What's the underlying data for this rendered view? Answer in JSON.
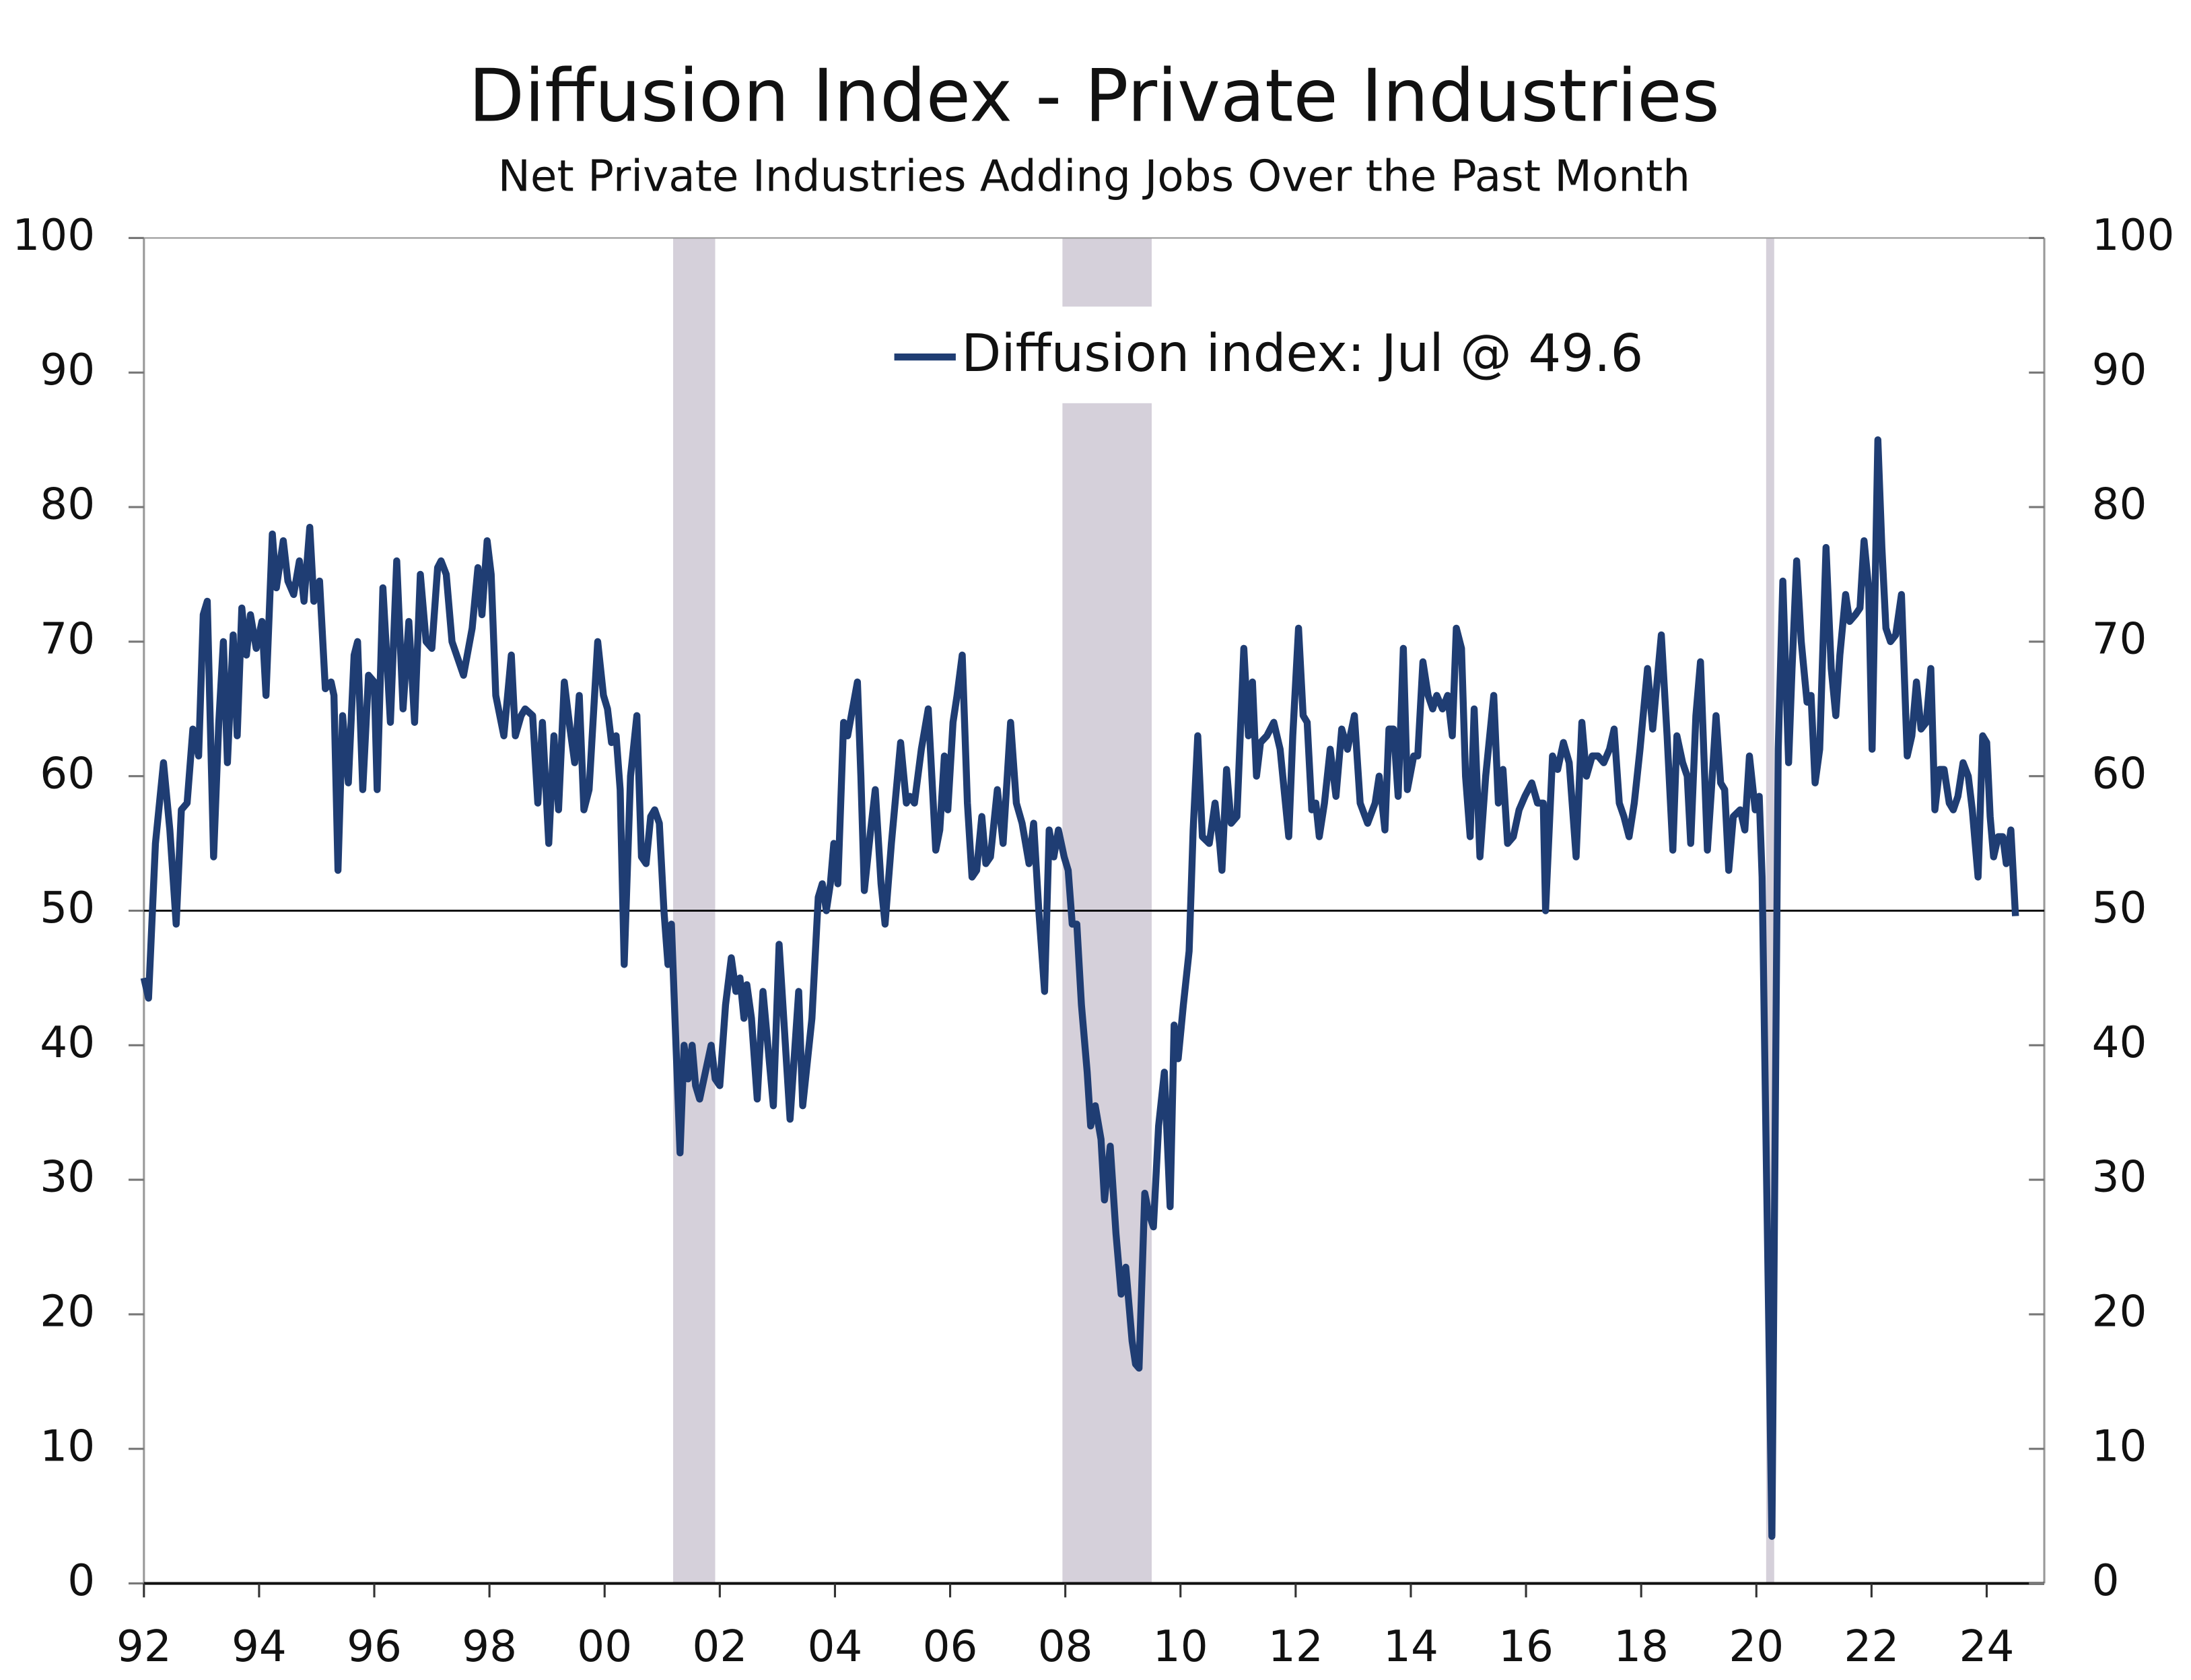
{
  "chart_data": {
    "type": "line",
    "title": "Diffusion Index - Private Industries",
    "subtitle": "Net Private Industries Adding Jobs Over the Past Month",
    "x": [
      1992.0,
      1992.08,
      1992.2,
      1992.34,
      1992.45,
      1992.56,
      1992.65,
      1992.75,
      1992.85,
      1992.95,
      1993.03,
      1993.1,
      1993.21,
      1993.3,
      1993.38,
      1993.45,
      1993.55,
      1993.62,
      1993.7,
      1993.78,
      1993.85,
      1993.95,
      1994.05,
      1994.12,
      1994.23,
      1994.3,
      1994.42,
      1994.5,
      1994.6,
      1994.7,
      1994.78,
      1994.88,
      1994.95,
      1995.05,
      1995.15,
      1995.25,
      1995.3,
      1995.37,
      1995.45,
      1995.55,
      1995.65,
      1995.71,
      1995.8,
      1995.9,
      1996.0,
      1996.05,
      1996.15,
      1996.28,
      1996.39,
      1996.5,
      1996.6,
      1996.7,
      1996.8,
      1996.9,
      1997.0,
      1997.1,
      1997.16,
      1997.25,
      1997.35,
      1997.55,
      1997.7,
      1997.8,
      1997.87,
      1997.96,
      1998.03,
      1998.11,
      1998.25,
      1998.38,
      1998.45,
      1998.55,
      1998.62,
      1998.75,
      1998.84,
      1998.92,
      1999.03,
      1999.12,
      1999.2,
      1999.3,
      1999.4,
      1999.48,
      1999.56,
      1999.64,
      1999.73,
      1999.88,
      1999.98,
      2000.05,
      2000.12,
      2000.2,
      2000.27,
      2000.34,
      2000.45,
      2000.56,
      2000.64,
      2000.72,
      2000.8,
      2000.87,
      2000.95,
      2001.03,
      2001.1,
      2001.16,
      2001.31,
      2001.38,
      2001.45,
      2001.52,
      2001.58,
      2001.65,
      2001.75,
      2001.85,
      2001.92,
      2002.0,
      2002.1,
      2002.2,
      2002.28,
      2002.35,
      2002.42,
      2002.47,
      2002.55,
      2002.65,
      2002.75,
      2002.93,
      2003.03,
      2003.22,
      2003.37,
      2003.44,
      2003.6,
      2003.71,
      2003.78,
      2003.85,
      2003.92,
      2003.98,
      2004.05,
      2004.15,
      2004.22,
      2004.39,
      2004.45,
      2004.51,
      2004.62,
      2004.7,
      2004.8,
      2004.87,
      2004.98,
      2005.14,
      2005.24,
      2005.3,
      2005.38,
      2005.5,
      2005.62,
      2005.75,
      2005.82,
      2005.9,
      2005.96,
      2006.05,
      2006.12,
      2006.21,
      2006.3,
      2006.38,
      2006.46,
      2006.55,
      2006.62,
      2006.7,
      2006.82,
      2006.92,
      2007.05,
      2007.15,
      2007.25,
      2007.37,
      2007.45,
      2007.54,
      2007.64,
      2007.72,
      2007.8,
      2007.88,
      2007.98,
      2008.05,
      2008.12,
      2008.2,
      2008.28,
      2008.38,
      2008.44,
      2008.52,
      2008.62,
      2008.68,
      2008.78,
      2008.88,
      2008.97,
      2009.05,
      2009.16,
      2009.22,
      2009.28,
      2009.38,
      2009.45,
      2009.53,
      2009.62,
      2009.72,
      2009.82,
      2009.89,
      2009.96,
      2010.05,
      2010.15,
      2010.22,
      2010.3,
      2010.38,
      2010.5,
      2010.6,
      2010.68,
      2010.72,
      2010.8,
      2010.88,
      2010.98,
      2011.1,
      2011.18,
      2011.25,
      2011.32,
      2011.39,
      2011.5,
      2011.62,
      2011.73,
      2011.88,
      2011.95,
      2012.05,
      2012.13,
      2012.2,
      2012.28,
      2012.35,
      2012.41,
      2012.5,
      2012.6,
      2012.7,
      2012.8,
      2012.9,
      2013.02,
      2013.12,
      2013.25,
      2013.38,
      2013.45,
      2013.55,
      2013.62,
      2013.7,
      2013.78,
      2013.87,
      2013.94,
      2014.05,
      2014.12,
      2014.21,
      2014.3,
      2014.38,
      2014.45,
      2014.55,
      2014.64,
      2014.72,
      2014.79,
      2014.88,
      2014.95,
      2015.03,
      2015.1,
      2015.2,
      2015.3,
      2015.44,
      2015.52,
      2015.6,
      2015.68,
      2015.78,
      2015.88,
      2015.98,
      2016.1,
      2016.2,
      2016.3,
      2016.34,
      2016.46,
      2016.55,
      2016.65,
      2016.75,
      2016.87,
      2016.97,
      2017.05,
      2017.15,
      2017.25,
      2017.35,
      2017.45,
      2017.53,
      2017.62,
      2017.7,
      2017.79,
      2017.88,
      2017.98,
      2018.11,
      2018.2,
      2018.35,
      2018.45,
      2018.55,
      2018.62,
      2018.72,
      2018.8,
      2018.86,
      2018.95,
      2019.03,
      2019.15,
      2019.22,
      2019.3,
      2019.38,
      2019.45,
      2019.52,
      2019.6,
      2019.72,
      2019.8,
      2019.88,
      2019.98,
      2020.05,
      2020.1,
      2020.27,
      2020.38,
      2020.46,
      2020.56,
      2020.62,
      2020.7,
      2020.78,
      2020.88,
      2020.95,
      2021.02,
      2021.1,
      2021.21,
      2021.3,
      2021.38,
      2021.45,
      2021.55,
      2021.62,
      2021.72,
      2021.8,
      2021.87,
      2021.95,
      2022.01,
      2022.11,
      2022.18,
      2022.25,
      2022.33,
      2022.42,
      2022.52,
      2022.62,
      2022.7,
      2022.78,
      2022.86,
      2022.95,
      2023.03,
      2023.1,
      2023.18,
      2023.26,
      2023.35,
      2023.42,
      2023.5,
      2023.59,
      2023.68,
      2023.75,
      2023.85,
      2023.93,
      2024.0,
      2024.06,
      2024.12,
      2024.2,
      2024.28,
      2024.34,
      2024.42,
      2024.5
    ],
    "series": [
      {
        "name": "Diffusion index: Jul @ 49.6",
        "color": "#1f3d73",
        "values": [
          45,
          43.5,
          55,
          61,
          56,
          49,
          57.5,
          58,
          63.5,
          61.5,
          72,
          73,
          54,
          64,
          70,
          61,
          70.5,
          63,
          72.5,
          69,
          72,
          69.5,
          71.5,
          66,
          78,
          74,
          77.5,
          74.5,
          73.5,
          76,
          73,
          78.5,
          73,
          74.5,
          66.5,
          67,
          66,
          53,
          64.5,
          59.5,
          69,
          70,
          59,
          67.5,
          67,
          59,
          74,
          64,
          76,
          65,
          71.5,
          64,
          75,
          70,
          69.5,
          75.5,
          76,
          75,
          70,
          67.5,
          71,
          75.5,
          72,
          77.5,
          75,
          66,
          63,
          69,
          63,
          64.5,
          65,
          64.5,
          58,
          64,
          55,
          63,
          57.5,
          67,
          63.5,
          61,
          66,
          57.5,
          59,
          70,
          66,
          65,
          62.5,
          63,
          59,
          46,
          60,
          64.5,
          54,
          53.5,
          57,
          57.5,
          56.5,
          50,
          46,
          49,
          32,
          40,
          37.5,
          40,
          37,
          36,
          38,
          40,
          37.5,
          37,
          43,
          46.5,
          44,
          45,
          42,
          44.5,
          42,
          36,
          44,
          35.5,
          47.5,
          34.5,
          44,
          35.5,
          42,
          51,
          52,
          50,
          52,
          55,
          52,
          64,
          63,
          67,
          60,
          51.5,
          56,
          59,
          52,
          49,
          55,
          62.5,
          58,
          58.5,
          58,
          62,
          65,
          54.5,
          56,
          61.5,
          57.5,
          64,
          66,
          69,
          58,
          52.5,
          53,
          57,
          53.5,
          54,
          59,
          55,
          64,
          58,
          56.5,
          53.5,
          56.5,
          50,
          44,
          56,
          54,
          56,
          54,
          53,
          49,
          49,
          43,
          38,
          34,
          35.5,
          33,
          28.5,
          32.5,
          26,
          21.5,
          23.5,
          18,
          16.3,
          16,
          29,
          27.5,
          26.5,
          34,
          38,
          28,
          41.5,
          39,
          43,
          47,
          56,
          63,
          55.5,
          55,
          58,
          55,
          53,
          60.5,
          56.5,
          57,
          69.5,
          63,
          67,
          60,
          62.5,
          63,
          64,
          62,
          55.5,
          63,
          71,
          64.5,
          64,
          57.5,
          58,
          55.5,
          58,
          62,
          58.5,
          63.5,
          62,
          64.5,
          58,
          56.5,
          58,
          60,
          56,
          63.5,
          63.5,
          58.5,
          69.5,
          59,
          61.5,
          61.5,
          68.5,
          66,
          65,
          66,
          65,
          66,
          63,
          71,
          69.5,
          60,
          55.5,
          65,
          54,
          60,
          66,
          58,
          60.5,
          55,
          55.5,
          57.5,
          58.5,
          59.5,
          58,
          58,
          50,
          61.5,
          60.5,
          62.5,
          61,
          54,
          64,
          60,
          61.5,
          61.5,
          61,
          62,
          63.5,
          58,
          57,
          55.5,
          58,
          62,
          68,
          63.5,
          70.5,
          63,
          54.5,
          63,
          61,
          60,
          55,
          64.5,
          68.5,
          54.5,
          59,
          64.5,
          59.5,
          59,
          53,
          57,
          57.5,
          56,
          61.5,
          57.5,
          58.5,
          52.5,
          3.5,
          62,
          74.5,
          61,
          68,
          76,
          70,
          65.5,
          66,
          59.5,
          62,
          77,
          68,
          64.5,
          69,
          73.5,
          71.5,
          72,
          72.5,
          77.5,
          74,
          62,
          85,
          77,
          71,
          70,
          70.5,
          73.5,
          61.5,
          63,
          67,
          63.5,
          64,
          68,
          57.5,
          60.5,
          60.5,
          58,
          57.5,
          58.5,
          61,
          60,
          57.5,
          52.5,
          63,
          62.5,
          57,
          54,
          55.5,
          55.5,
          53.5,
          56,
          49.6
        ]
      }
    ],
    "xlim": [
      1992,
      2025
    ],
    "xticks": [
      {
        "value": 1992,
        "label": "92"
      },
      {
        "value": 1994,
        "label": "94"
      },
      {
        "value": 1996,
        "label": "96"
      },
      {
        "value": 1998,
        "label": "98"
      },
      {
        "value": 2000,
        "label": "00"
      },
      {
        "value": 2002,
        "label": "02"
      },
      {
        "value": 2004,
        "label": "04"
      },
      {
        "value": 2006,
        "label": "06"
      },
      {
        "value": 2008,
        "label": "08"
      },
      {
        "value": 2010,
        "label": "10"
      },
      {
        "value": 2012,
        "label": "12"
      },
      {
        "value": 2014,
        "label": "14"
      },
      {
        "value": 2016,
        "label": "16"
      },
      {
        "value": 2018,
        "label": "18"
      },
      {
        "value": 2020,
        "label": "20"
      },
      {
        "value": 2022,
        "label": "22"
      },
      {
        "value": 2024,
        "label": "24"
      }
    ],
    "ylim": [
      0,
      100
    ],
    "yticks": [
      0,
      10,
      20,
      30,
      40,
      50,
      60,
      70,
      80,
      90,
      100
    ],
    "y2lim": [
      0,
      100
    ],
    "y2ticks": [
      0,
      10,
      20,
      30,
      40,
      50,
      60,
      70,
      80,
      90,
      100
    ],
    "hline": 50,
    "shaded_regions": [
      {
        "start": 2001.19,
        "end": 2001.92
      },
      {
        "start": 2007.95,
        "end": 2009.5
      },
      {
        "start": 2020.17,
        "end": 2020.31
      }
    ],
    "shade_color": "#d5d0da",
    "legend": "upper center"
  }
}
